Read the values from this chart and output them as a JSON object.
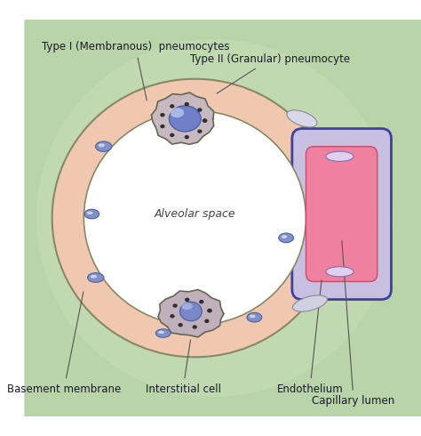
{
  "bg_color": "#b8d4a8",
  "bg_color2": "#c8ddb8",
  "alveolar_wall_color": "#f0c8b0",
  "alveolar_wall_edge": "#888866",
  "alveolar_space_color": "#ffffff",
  "type1_cell_color": "#d0b8c8",
  "type1_nucleus_color": "#8090c8",
  "type2_cell_color": "#c8b8c0",
  "type2_nucleus_color": "#7080c0",
  "interstitial_color": "#c0b0bc",
  "capillary_outer_color": "#c8c0e0",
  "capillary_lumen_color": "#f080a0",
  "capillary_border": "#4040a0",
  "endothelium_color": "#e8d8f0",
  "labels": {
    "type1": "Type I (Membranous)  pneumocytes",
    "type2": "Type II (Granular) pneumocyte",
    "alveolar_space": "Alveolar space",
    "basement_membrane": "Basement membrane",
    "interstitial_cell": "Interstitial cell",
    "endothelium": "Endothelium",
    "capillary_lumen": "Capillary lumen"
  },
  "figsize": [
    4.74,
    4.9
  ],
  "dpi": 100
}
